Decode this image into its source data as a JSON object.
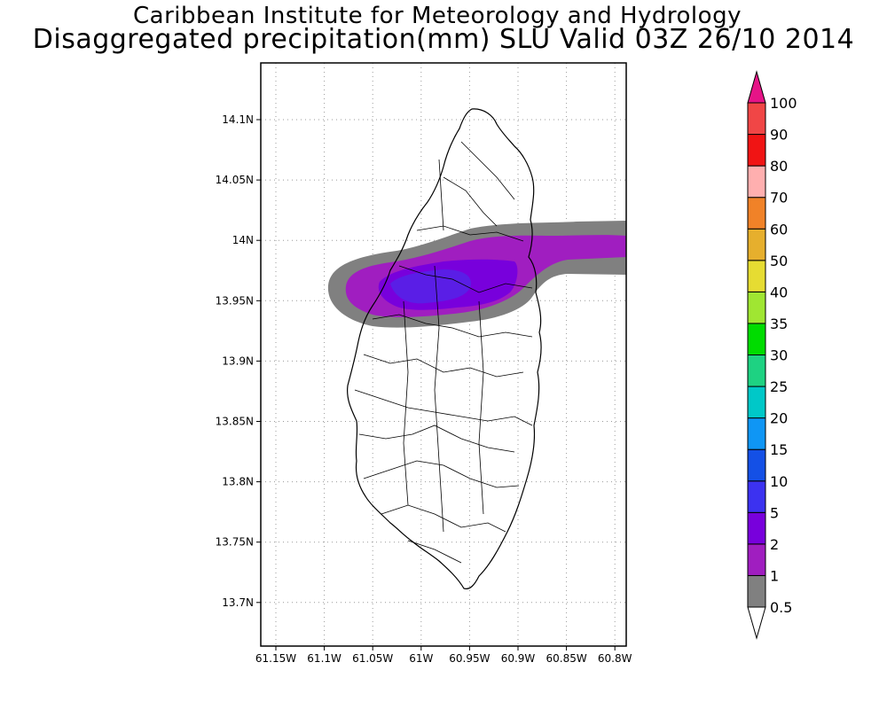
{
  "title": {
    "line1": "Caribbean Institute for Meteorology and Hydrology",
    "line2": "Disaggregated precipitation(mm) SLU Valid 03Z 26/10 2014"
  },
  "map": {
    "lat_ticks": [
      {
        "value": 14.1,
        "label": "14.1N"
      },
      {
        "value": 14.05,
        "label": "14.05N"
      },
      {
        "value": 14.0,
        "label": "14N"
      },
      {
        "value": 13.95,
        "label": "13.95N"
      },
      {
        "value": 13.9,
        "label": "13.9N"
      },
      {
        "value": 13.85,
        "label": "13.85N"
      },
      {
        "value": 13.8,
        "label": "13.8N"
      },
      {
        "value": 13.75,
        "label": "13.75N"
      },
      {
        "value": 13.7,
        "label": "13.7N"
      }
    ],
    "lon_ticks": [
      {
        "value": -61.15,
        "label": "61.15W"
      },
      {
        "value": -61.1,
        "label": "61.1W"
      },
      {
        "value": -61.05,
        "label": "61.05W"
      },
      {
        "value": -61.0,
        "label": "61W"
      },
      {
        "value": -60.95,
        "label": "60.95W"
      },
      {
        "value": -60.9,
        "label": "60.9W"
      },
      {
        "value": -60.85,
        "label": "60.85W"
      },
      {
        "value": -60.8,
        "label": "60.8W"
      }
    ]
  },
  "colorbar": {
    "levels": [
      {
        "label": "0.5",
        "color": "#ffffff"
      },
      {
        "label": "1",
        "color": "#808080"
      },
      {
        "label": "2",
        "color": "#a01ec0"
      },
      {
        "label": "5",
        "color": "#7800dc"
      },
      {
        "label": "10",
        "color": "#3c32f0"
      },
      {
        "label": "15",
        "color": "#1450e6"
      },
      {
        "label": "20",
        "color": "#0f96f5"
      },
      {
        "label": "25",
        "color": "#00c8c8"
      },
      {
        "label": "30",
        "color": "#1ed282"
      },
      {
        "label": "35",
        "color": "#00dc00"
      },
      {
        "label": "40",
        "color": "#a0e632"
      },
      {
        "label": "50",
        "color": "#e6dc32"
      },
      {
        "label": "60",
        "color": "#e6af2d"
      },
      {
        "label": "70",
        "color": "#f08228"
      },
      {
        "label": "80",
        "color": "#ffafaf"
      },
      {
        "label": "90",
        "color": "#f01414"
      },
      {
        "label": "100",
        "color": "#f04646"
      }
    ],
    "top_color": "#e61487"
  }
}
